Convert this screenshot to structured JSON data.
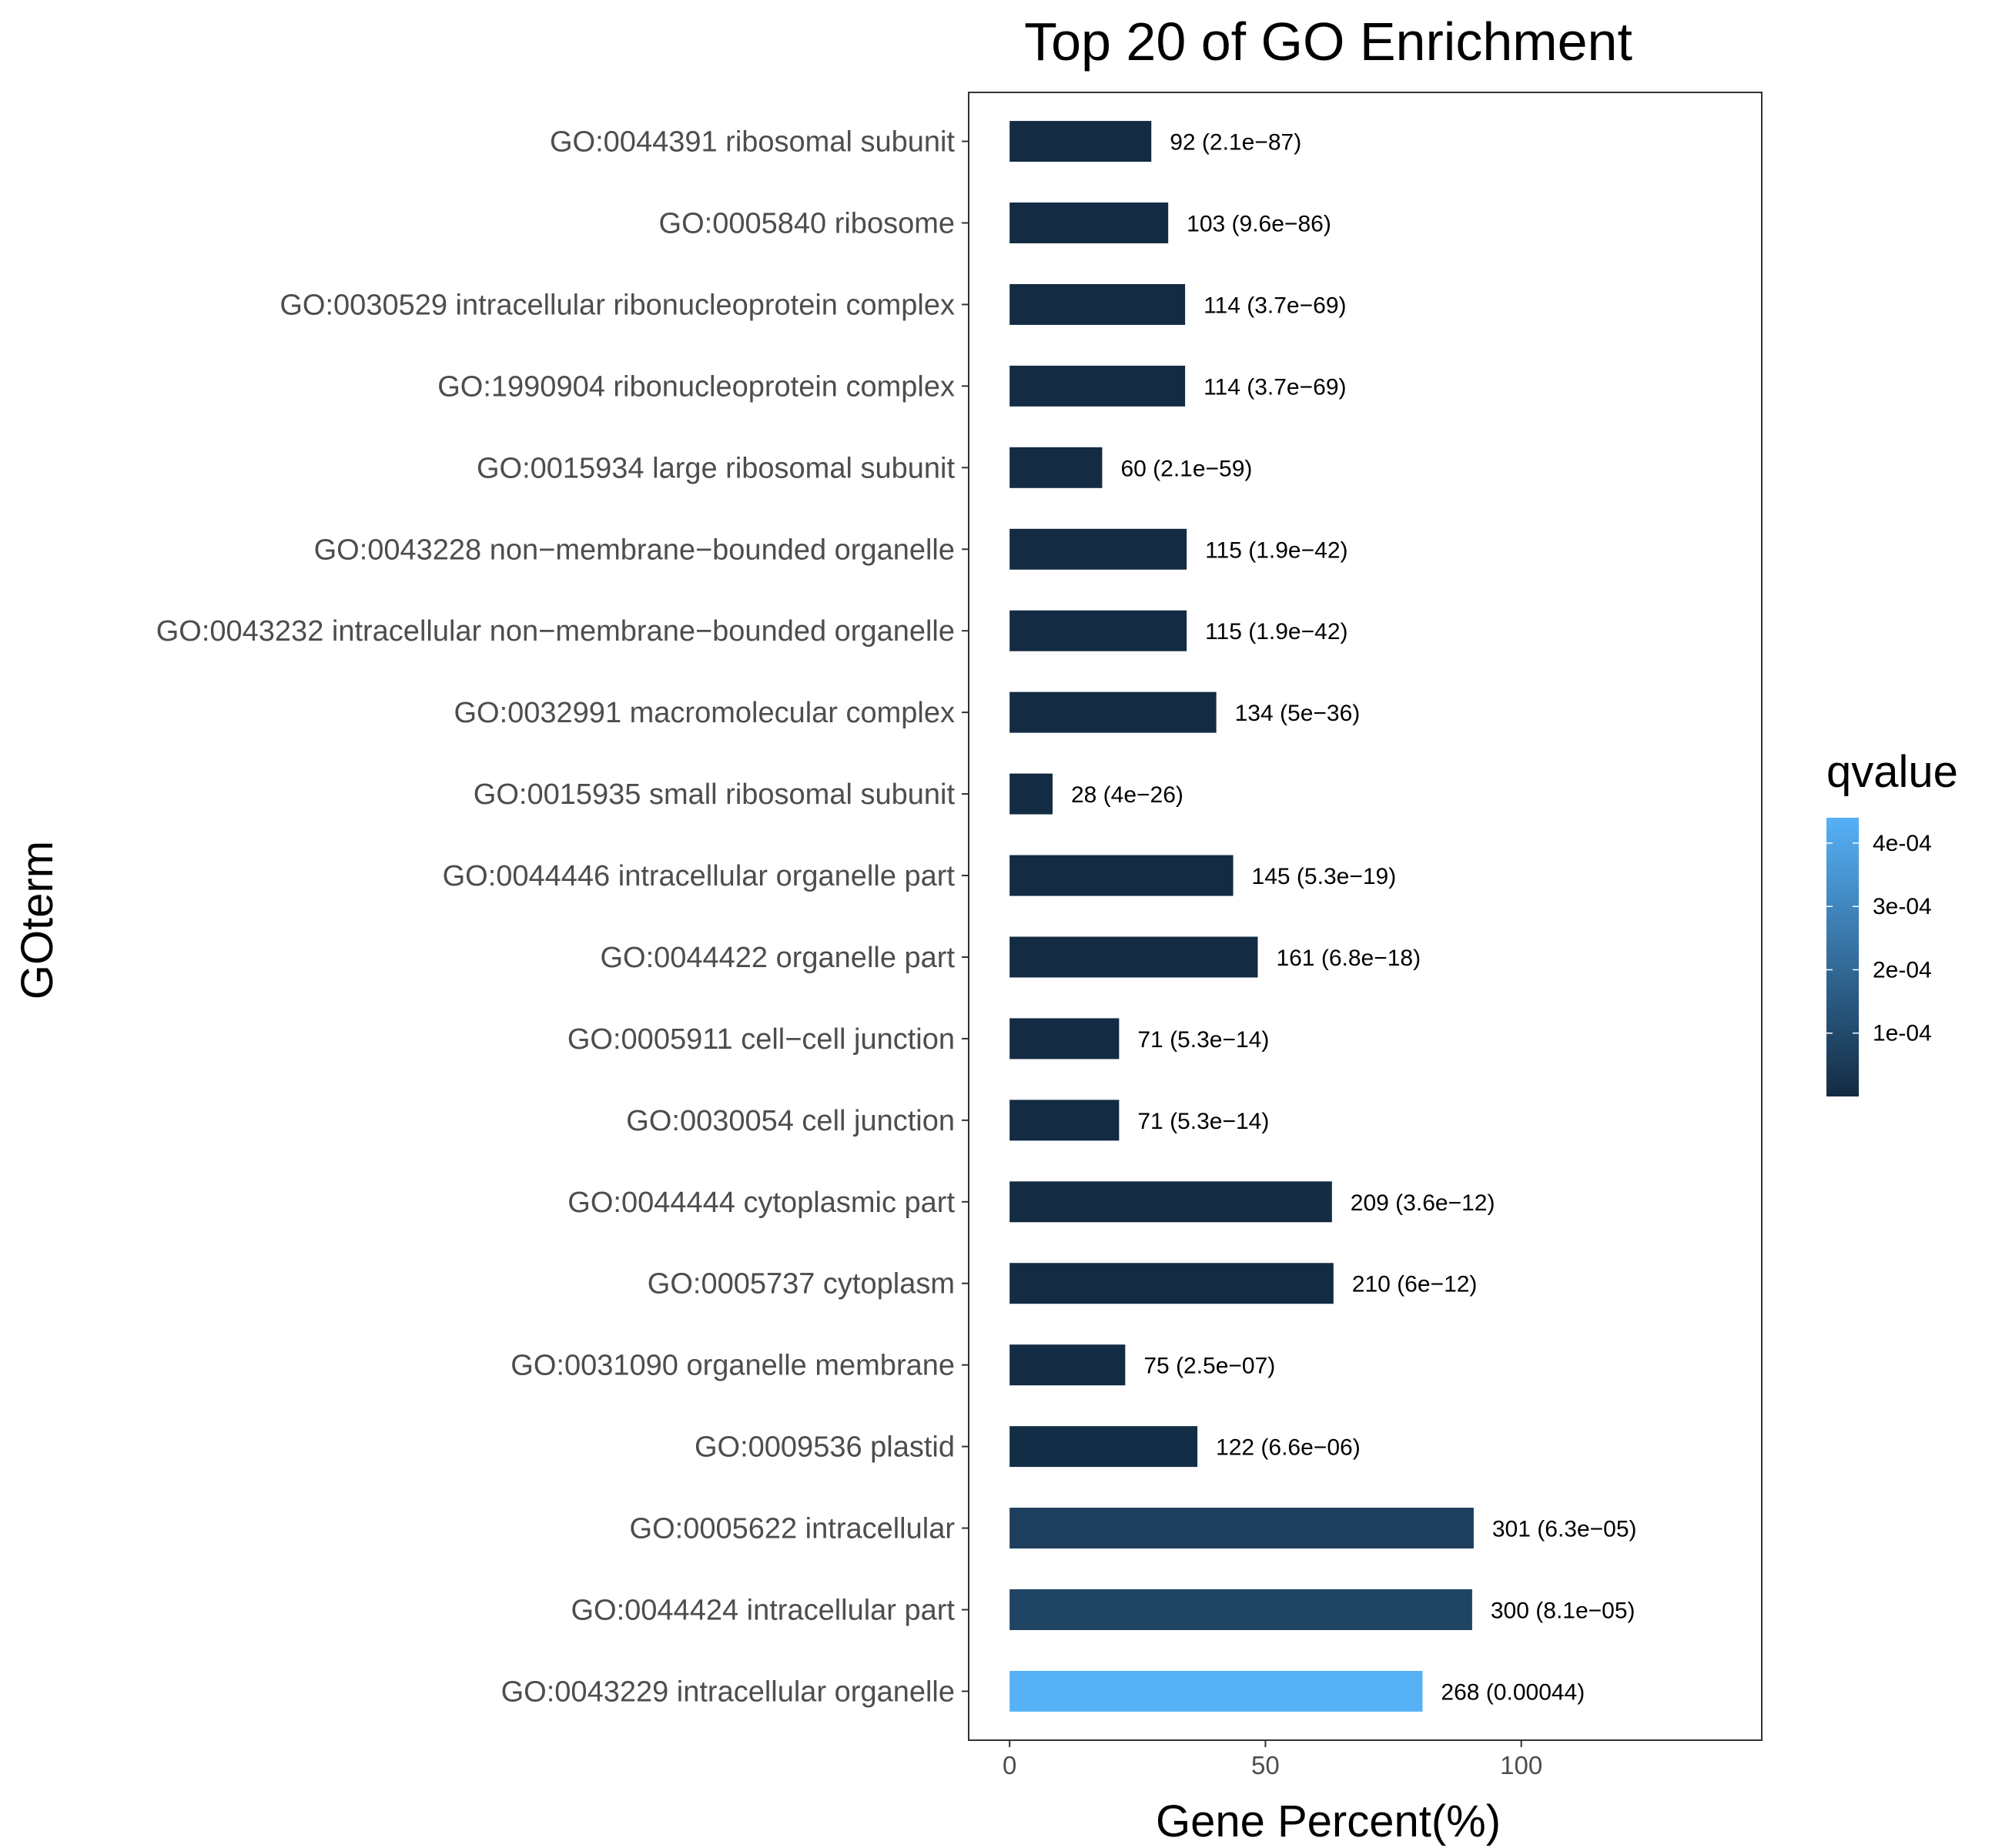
{
  "chart_data": {
    "type": "bar",
    "orientation": "horizontal",
    "title": "Top 20 of GO Enrichment",
    "xlabel": "Gene Percent(%)",
    "ylabel": "GOterm",
    "xlim": [
      -8,
      147
    ],
    "xticks": [
      0,
      50,
      100
    ],
    "grid": false,
    "legend": {
      "title": "qvalue",
      "type": "colorbar",
      "position": "right",
      "ticks": [
        "1e-04",
        "2e-04",
        "3e-04",
        "4e-04"
      ],
      "tick_values": [
        0.0001,
        0.0002,
        0.0003,
        0.0004
      ],
      "range": [
        0.0,
        0.00044
      ],
      "color_low": "#132B43",
      "color_high": "#56B1F7"
    },
    "categories": [
      "GO:0044391 ribosomal subunit",
      "GO:0005840 ribosome",
      "GO:0030529 intracellular ribonucleoprotein complex",
      "GO:1990904 ribonucleoprotein complex",
      "GO:0015934 large ribosomal subunit",
      "GO:0043228 non−membrane−bounded organelle",
      "GO:0043232 intracellular non−membrane−bounded organelle",
      "GO:0032991 macromolecular complex",
      "GO:0015935 small ribosomal subunit",
      "GO:0044446 intracellular organelle part",
      "GO:0044422 organelle part",
      "GO:0005911 cell−cell junction",
      "GO:0030054 cell junction",
      "GO:0044444 cytoplasmic part",
      "GO:0005737 cytoplasm",
      "GO:0031090 organelle membrane",
      "GO:0009536 plastid",
      "GO:0005622 intracellular",
      "GO:0044424 intracellular part",
      "GO:0043229 intracellular organelle"
    ],
    "values": [
      27.7,
      31.0,
      34.3,
      34.3,
      18.1,
      34.6,
      34.6,
      40.4,
      8.4,
      43.7,
      48.5,
      21.4,
      21.4,
      63.0,
      63.3,
      22.6,
      36.7,
      90.7,
      90.4,
      80.7
    ],
    "qvalues": [
      2.1e-87,
      9.6e-86,
      3.7e-69,
      3.7e-69,
      2.1e-59,
      1.9e-42,
      1.9e-42,
      5e-36,
      4e-26,
      5.3e-19,
      6.8e-18,
      5.3e-14,
      5.3e-14,
      3.6e-12,
      6e-12,
      2.5e-07,
      6.6e-06,
      6.3e-05,
      8.1e-05,
      0.00044
    ],
    "bar_labels": [
      "92 (2.1e−87)",
      "103 (9.6e−86)",
      "114 (3.7e−69)",
      "114 (3.7e−69)",
      "60 (2.1e−59)",
      "115 (1.9e−42)",
      "115 (1.9e−42)",
      "134 (5e−36)",
      "28 (4e−26)",
      "145 (5.3e−19)",
      "161 (6.8e−18)",
      "71 (5.3e−14)",
      "71 (5.3e−14)",
      "209 (3.6e−12)",
      "210 (6e−12)",
      "75 (2.5e−07)",
      "122 (6.6e−06)",
      "301 (6.3e−05)",
      "300 (8.1e−05)",
      "268 (0.00044)"
    ]
  }
}
